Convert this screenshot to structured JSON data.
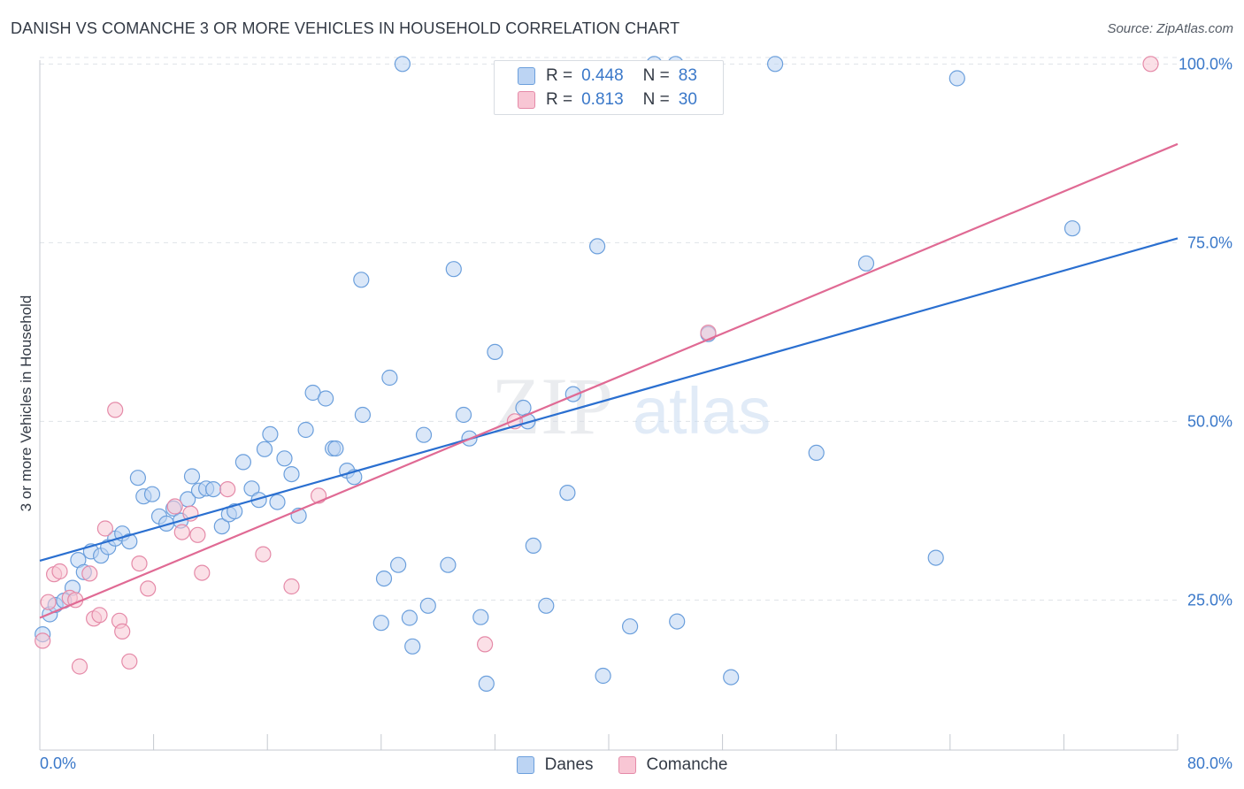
{
  "header": {
    "title": "DANISH VS COMANCHE 3 OR MORE VEHICLES IN HOUSEHOLD CORRELATION CHART",
    "source": "Source: ZipAtlas.com"
  },
  "watermark": {
    "zip": "ZIP",
    "atlas": "atlas"
  },
  "stats": {
    "danes": {
      "r_label": "R =",
      "r": "0.448",
      "n_label": "N =",
      "n": "83"
    },
    "comanche": {
      "r_label": "R =",
      "r": "0.813",
      "n_label": "N =",
      "n": "30"
    }
  },
  "colors": {
    "danes_fill": "#bcd4f3",
    "danes_stroke": "#6b9fdc",
    "danes_line": "#2a6fd0",
    "comanche_fill": "#f8c6d4",
    "comanche_stroke": "#e58aa8",
    "comanche_line": "#e06a94",
    "tick_label": "#3a78c9",
    "grid": "#dfe3e8"
  },
  "chart_data": {
    "type": "scatter",
    "title": "DANISH VS COMANCHE 3 OR MORE VEHICLES IN HOUSEHOLD CORRELATION CHART",
    "xlabel": "",
    "ylabel": "3 or more Vehicles in Household",
    "xlim": [
      0,
      80
    ],
    "ylim": [
      4,
      104
    ],
    "x_tick_labels": [
      "0.0%",
      "80.0%"
    ],
    "y_ticks": [
      25,
      50,
      75,
      100
    ],
    "y_tick_labels": [
      "25.0%",
      "50.0%",
      "75.0%",
      "100.0%"
    ],
    "grid": true,
    "legend_position": "bottom",
    "series": [
      {
        "name": "Danes",
        "trend": {
          "x": [
            0,
            80
          ],
          "y": [
            30.5,
            75.6
          ]
        },
        "points": [
          [
            0.2,
            20.2
          ],
          [
            0.7,
            23.0
          ],
          [
            1.1,
            24.3
          ],
          [
            1.7,
            24.9
          ],
          [
            2.3,
            26.7
          ],
          [
            2.7,
            30.6
          ],
          [
            3.1,
            28.9
          ],
          [
            3.6,
            31.8
          ],
          [
            4.3,
            31.2
          ],
          [
            4.8,
            32.4
          ],
          [
            5.3,
            33.6
          ],
          [
            5.8,
            34.3
          ],
          [
            6.3,
            33.2
          ],
          [
            6.9,
            42.1
          ],
          [
            7.3,
            39.5
          ],
          [
            7.9,
            39.8
          ],
          [
            8.4,
            36.7
          ],
          [
            8.9,
            35.7
          ],
          [
            9.4,
            37.8
          ],
          [
            9.9,
            36.1
          ],
          [
            10.4,
            39.1
          ],
          [
            10.7,
            42.3
          ],
          [
            11.2,
            40.3
          ],
          [
            11.7,
            40.6
          ],
          [
            12.2,
            40.5
          ],
          [
            12.8,
            35.3
          ],
          [
            13.3,
            37.0
          ],
          [
            13.7,
            37.4
          ],
          [
            14.3,
            44.3
          ],
          [
            14.9,
            40.6
          ],
          [
            15.4,
            39.0
          ],
          [
            15.8,
            46.1
          ],
          [
            16.2,
            48.2
          ],
          [
            16.7,
            38.7
          ],
          [
            17.2,
            44.8
          ],
          [
            17.7,
            42.6
          ],
          [
            18.2,
            36.8
          ],
          [
            18.7,
            48.8
          ],
          [
            19.2,
            54.0
          ],
          [
            20.1,
            53.2
          ],
          [
            20.6,
            46.2
          ],
          [
            20.8,
            46.2
          ],
          [
            21.6,
            43.1
          ],
          [
            22.1,
            42.2
          ],
          [
            22.7,
            50.9
          ],
          [
            22.6,
            69.8
          ],
          [
            24.6,
            56.1
          ],
          [
            25.2,
            29.9
          ],
          [
            25.5,
            100.0
          ],
          [
            24.2,
            28.0
          ],
          [
            24.0,
            21.8
          ],
          [
            26.0,
            22.5
          ],
          [
            26.2,
            18.5
          ],
          [
            27.0,
            48.1
          ],
          [
            27.3,
            24.2
          ],
          [
            28.7,
            29.9
          ],
          [
            29.1,
            71.3
          ],
          [
            29.8,
            50.9
          ],
          [
            30.2,
            47.6
          ],
          [
            31.0,
            22.6
          ],
          [
            31.4,
            13.3
          ],
          [
            32.0,
            59.7
          ],
          [
            34.0,
            51.9
          ],
          [
            34.3,
            50.0
          ],
          [
            34.7,
            32.6
          ],
          [
            35.6,
            24.2
          ],
          [
            37.1,
            40.0
          ],
          [
            37.5,
            53.8
          ],
          [
            38.1,
            94.1
          ],
          [
            39.2,
            74.5
          ],
          [
            39.6,
            14.4
          ],
          [
            41.5,
            21.3
          ],
          [
            43.2,
            100.0
          ],
          [
            44.7,
            100.0
          ],
          [
            44.8,
            22.0
          ],
          [
            47.0,
            62.2
          ],
          [
            48.6,
            14.2
          ],
          [
            51.7,
            100.0
          ],
          [
            54.6,
            45.6
          ],
          [
            58.1,
            72.1
          ],
          [
            63.0,
            30.9
          ],
          [
            64.5,
            98.0
          ],
          [
            72.6,
            77.0
          ]
        ]
      },
      {
        "name": "Comanche",
        "trend": {
          "x": [
            0,
            80
          ],
          "y": [
            22.5,
            88.8
          ]
        },
        "points": [
          [
            0.2,
            19.3
          ],
          [
            0.6,
            24.7
          ],
          [
            1.0,
            28.6
          ],
          [
            1.4,
            29.0
          ],
          [
            2.1,
            25.3
          ],
          [
            2.5,
            25.0
          ],
          [
            2.8,
            15.7
          ],
          [
            3.5,
            28.7
          ],
          [
            3.8,
            22.4
          ],
          [
            4.2,
            22.9
          ],
          [
            4.6,
            35.0
          ],
          [
            5.3,
            51.6
          ],
          [
            5.6,
            22.1
          ],
          [
            5.8,
            20.6
          ],
          [
            6.3,
            16.4
          ],
          [
            7.0,
            30.1
          ],
          [
            7.6,
            26.6
          ],
          [
            9.5,
            38.1
          ],
          [
            10.0,
            34.5
          ],
          [
            10.6,
            37.1
          ],
          [
            11.1,
            34.1
          ],
          [
            11.4,
            28.8
          ],
          [
            13.2,
            40.5
          ],
          [
            15.7,
            31.4
          ],
          [
            17.7,
            26.9
          ],
          [
            19.6,
            39.6
          ],
          [
            31.3,
            18.8
          ],
          [
            33.4,
            50.0
          ],
          [
            47.0,
            62.4
          ],
          [
            78.1,
            100.0
          ]
        ]
      }
    ]
  }
}
